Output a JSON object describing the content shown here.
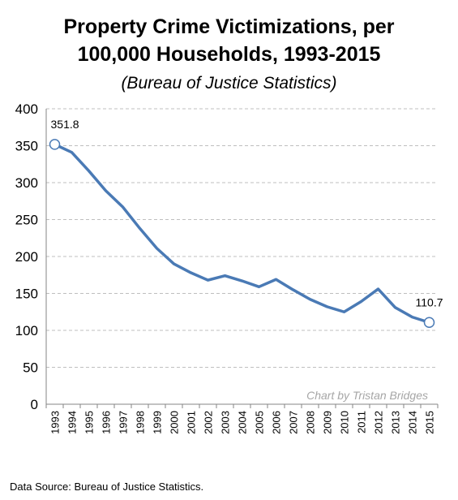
{
  "title_line1": "Property Crime Victimizations, per",
  "title_line2": "100,000 Households, 1993-2015",
  "subtitle": "(Bureau of Justice Statistics)",
  "credit": "Chart by Tristan Bridges",
  "source": "Data Source: Bureau of Justice Statistics.",
  "chart_data": {
    "type": "line",
    "title": "Property Crime Victimizations, per 100,000 Households, 1993-2015",
    "subtitle": "(Bureau of Justice Statistics)",
    "xlabel": "",
    "ylabel": "",
    "ylim": [
      0,
      400
    ],
    "yticks": [
      0,
      50,
      100,
      150,
      200,
      250,
      300,
      350,
      400
    ],
    "grid": true,
    "legend": "none",
    "x": [
      "1993",
      "1994",
      "1995",
      "1996",
      "1997",
      "1998",
      "1999",
      "2000",
      "2001",
      "2002",
      "2003",
      "2004",
      "2005",
      "2006",
      "2007",
      "2008",
      "2009",
      "2010",
      "2011",
      "2012",
      "2013",
      "2014",
      "2015"
    ],
    "series": [
      {
        "values": [
          351.8,
          341,
          316,
          289,
          267,
          238,
          211,
          190,
          178,
          168,
          174,
          167,
          159,
          169,
          155,
          142,
          132,
          125,
          139,
          156,
          131,
          118,
          110.7
        ],
        "color": "#4a7ab5"
      }
    ],
    "annotations": [
      {
        "index": 0,
        "label": "351.8"
      },
      {
        "index": 22,
        "label": "110.7"
      }
    ]
  }
}
